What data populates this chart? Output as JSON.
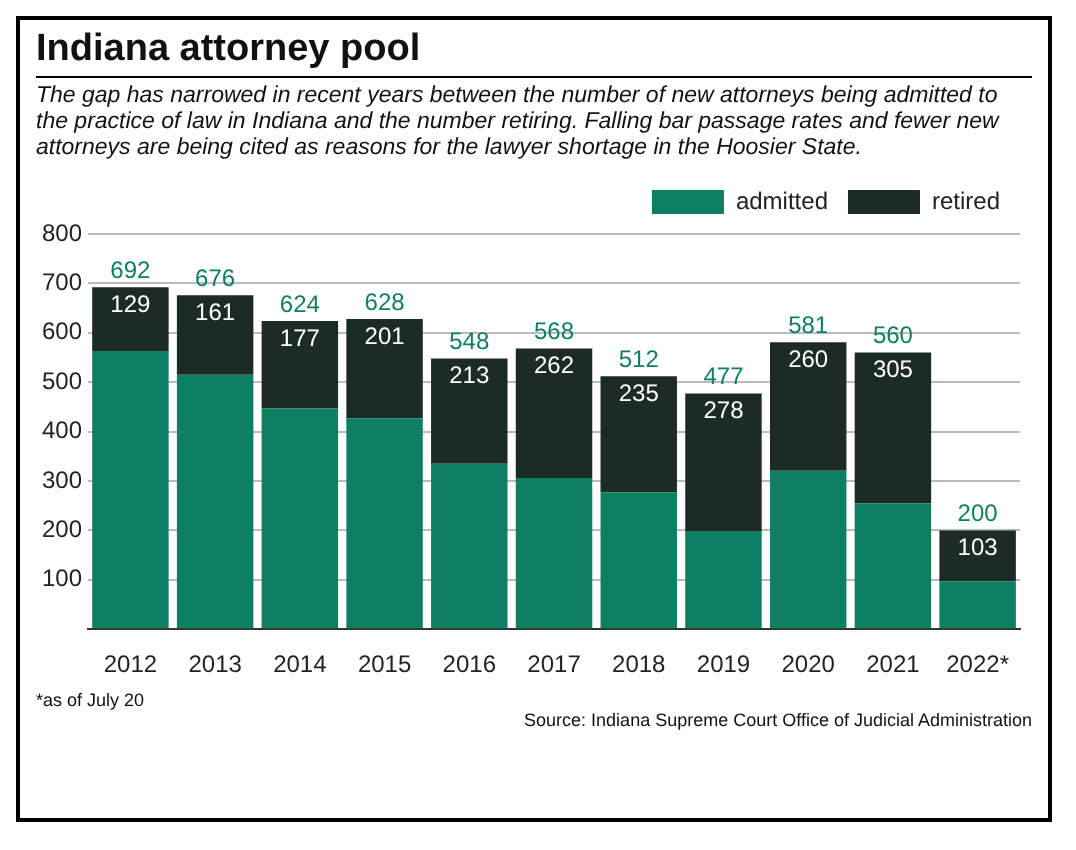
{
  "chart_data": {
    "type": "bar",
    "title": "Indiana attorney pool",
    "subtitle": "The gap has narrowed in recent years between the number of new attorneys being admitted to the practice of law in Indiana and the number retiring. Falling bar passage rates and fewer new attorneys are being cited as reasons for the lawyer shortage in the Hoosier State.",
    "categories": [
      "2012",
      "2013",
      "2014",
      "2015",
      "2016",
      "2017",
      "2018",
      "2019",
      "2020",
      "2021",
      "2022*"
    ],
    "series": [
      {
        "name": "admitted",
        "color": "#0e7f62",
        "values": [
          563,
          515,
          447,
          427,
          335,
          306,
          277,
          199,
          321,
          255,
          97
        ]
      },
      {
        "name": "retired",
        "color": "#1d2b26",
        "values": [
          129,
          161,
          177,
          201,
          213,
          262,
          235,
          278,
          260,
          305,
          103
        ],
        "value_labels": [
          "129",
          "161",
          "177",
          "201",
          "213",
          "262",
          "235",
          "278",
          "260",
          "305",
          "103"
        ]
      }
    ],
    "stacked": true,
    "totals": [
      "692",
      "676",
      "624",
      "628",
      "548",
      "568",
      "512",
      "477",
      "581",
      "560",
      "200"
    ],
    "ylim": [
      0,
      800
    ],
    "yticks": [
      {
        "value": 0,
        "label": null
      },
      100,
      200,
      300,
      400,
      500,
      600,
      700,
      800
    ],
    "grid": "y",
    "legend": "top right",
    "annotations": [
      "*as of July 20",
      "Source: Indiana Supreme Court Office of Judicial Administration"
    ]
  }
}
